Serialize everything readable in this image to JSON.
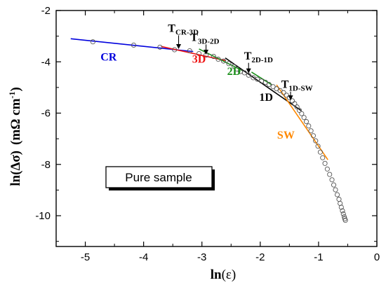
{
  "chart_data": {
    "type": "scatter",
    "xlabel_main": "ln",
    "xlabel_var": "(ε)",
    "ylabel_main": "ln(Δσ)",
    "ylabel_unit": "(mΩ cm",
    "ylabel_exp": "-1",
    "ylabel_close": ")",
    "xlim": [
      -5.5,
      0
    ],
    "ylim": [
      -11.2,
      -2
    ],
    "xticks": [
      -5,
      -4,
      -3,
      -2,
      -1,
      0
    ],
    "yticks": [
      -2,
      -4,
      -6,
      -8,
      -10
    ],
    "box_label": "Pure sample",
    "series": [
      {
        "marker": "open-circle",
        "color": "#555555",
        "points": [
          [
            -4.87,
            -3.22
          ],
          [
            -4.17,
            -3.35
          ],
          [
            -3.72,
            -3.43
          ],
          [
            -3.47,
            -3.53
          ],
          [
            -3.21,
            -3.57
          ],
          [
            -3.05,
            -3.68
          ],
          [
            -2.93,
            -3.74
          ],
          [
            -2.8,
            -3.79
          ],
          [
            -2.72,
            -3.9
          ],
          [
            -2.63,
            -3.97
          ],
          [
            -2.54,
            -4.07
          ],
          [
            -2.45,
            -4.18
          ],
          [
            -2.4,
            -4.28
          ],
          [
            -2.34,
            -4.38
          ],
          [
            -2.27,
            -4.43
          ],
          [
            -2.2,
            -4.52
          ],
          [
            -2.12,
            -4.62
          ],
          [
            -2.05,
            -4.68
          ],
          [
            -1.98,
            -4.75
          ],
          [
            -1.91,
            -4.8
          ],
          [
            -1.85,
            -4.88
          ],
          [
            -1.78,
            -4.97
          ],
          [
            -1.72,
            -5.05
          ],
          [
            -1.66,
            -5.12
          ],
          [
            -1.6,
            -5.2
          ],
          [
            -1.55,
            -5.3
          ],
          [
            -1.5,
            -5.4
          ],
          [
            -1.45,
            -5.52
          ],
          [
            -1.41,
            -5.63
          ],
          [
            -1.37,
            -5.76
          ],
          [
            -1.33,
            -5.89
          ],
          [
            -1.29,
            -6.02
          ],
          [
            -1.25,
            -6.17
          ],
          [
            -1.21,
            -6.33
          ],
          [
            -1.17,
            -6.5
          ],
          [
            -1.13,
            -6.69
          ],
          [
            -1.09,
            -6.88
          ],
          [
            -1.05,
            -7.08
          ],
          [
            -1.01,
            -7.29
          ],
          [
            -0.97,
            -7.52
          ],
          [
            -0.93,
            -7.74
          ],
          [
            -0.89,
            -7.96
          ],
          [
            -0.85,
            -8.18
          ],
          [
            -0.81,
            -8.39
          ],
          [
            -0.77,
            -8.6
          ],
          [
            -0.74,
            -8.8
          ],
          [
            -0.71,
            -8.99
          ],
          [
            -0.68,
            -9.18
          ],
          [
            -0.65,
            -9.36
          ],
          [
            -0.63,
            -9.52
          ],
          [
            -0.61,
            -9.67
          ],
          [
            -0.59,
            -9.81
          ],
          [
            -0.575,
            -9.93
          ],
          [
            -0.56,
            -10.04
          ],
          [
            -0.55,
            -10.12
          ],
          [
            -0.54,
            -10.18
          ]
        ]
      }
    ],
    "fits": [
      {
        "name": "CR",
        "color": "#0000dd",
        "x": [
          -5.25,
          -3.15
        ],
        "y": [
          -3.1,
          -3.6
        ]
      },
      {
        "name": "3D",
        "color": "#ee1111",
        "x": [
          -3.7,
          -2.6
        ],
        "y": [
          -3.4,
          -3.95
        ]
      },
      {
        "name": "2D",
        "color": "#1a8f1a",
        "x": [
          -3.05,
          -2.3
        ],
        "y": [
          -3.5,
          -4.35
        ]
      },
      {
        "name": "1D",
        "color": "#000000",
        "x": [
          -2.6,
          -1.3
        ],
        "y": [
          -3.85,
          -5.9
        ]
      },
      {
        "name": "",
        "color": "#1a8f1a",
        "x": [
          -2.15,
          -1.8
        ],
        "y": [
          -4.4,
          -4.9
        ]
      },
      {
        "name": "SW",
        "color": "#ff8800",
        "x": [
          -1.72,
          -0.84
        ],
        "y": [
          -4.9,
          -7.82
        ]
      }
    ],
    "regime_labels": [
      {
        "text": "CR",
        "color": "#0000dd",
        "x": -4.6,
        "y": -3.95
      },
      {
        "text": "3D",
        "color": "#ee1111",
        "x": -3.05,
        "y": -4.04
      },
      {
        "text": "2D",
        "color": "#1a8f1a",
        "x": -2.45,
        "y": -4.51
      },
      {
        "text": "1D",
        "color": "#000000",
        "x": -1.9,
        "y": -5.52
      },
      {
        "text": "SW",
        "color": "#ff8800",
        "x": -1.56,
        "y": -7.0
      }
    ],
    "transitions": [
      {
        "main": "T",
        "sub": "CR-3D",
        "x": -3.32,
        "y": -2.83,
        "arrow_x": -3.4,
        "arrow_y1": -2.97,
        "arrow_y2": -3.5
      },
      {
        "main": "T",
        "sub": "3D-2D",
        "x": -2.95,
        "y": -3.19,
        "arrow_x": -2.93,
        "arrow_y1": -3.32,
        "arrow_y2": -3.72
      },
      {
        "main": "T",
        "sub": "2D-1D",
        "x": -2.03,
        "y": -3.91,
        "arrow_x": -2.2,
        "arrow_y1": -4.04,
        "arrow_y2": -4.45
      },
      {
        "main": "T",
        "sub": "1D-SW",
        "x": -1.37,
        "y": -5.01,
        "arrow_x": -1.48,
        "arrow_y1": -5.16,
        "arrow_y2": -5.5
      }
    ]
  }
}
